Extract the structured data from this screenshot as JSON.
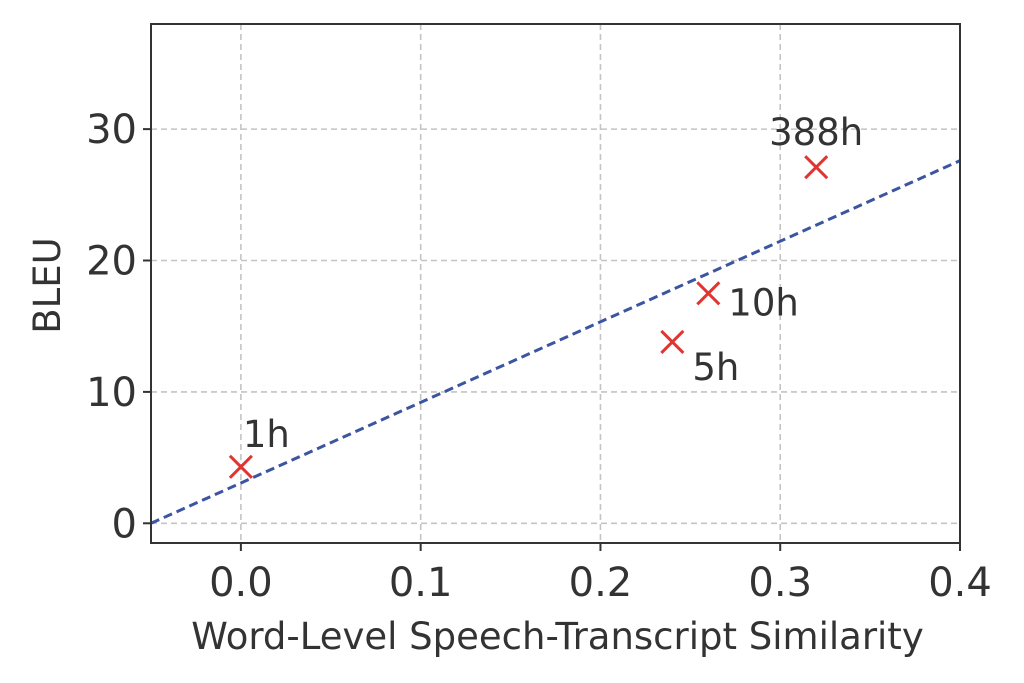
{
  "chart_data": {
    "type": "scatter",
    "title": "",
    "xlabel": "Word-Level Speech-Transcript Similarity",
    "ylabel": "BLEU",
    "xlim": [
      -0.05,
      0.4
    ],
    "ylim": [
      -1.5,
      38
    ],
    "x_ticks": [
      0.0,
      0.1,
      0.2,
      0.3,
      0.4
    ],
    "x_tick_labels": [
      "0.0",
      "0.1",
      "0.2",
      "0.3",
      "0.4"
    ],
    "y_ticks": [
      0,
      10,
      20,
      30
    ],
    "y_tick_labels": [
      "0",
      "10",
      "20",
      "30"
    ],
    "grid": true,
    "marker": "x",
    "colors": {
      "points": "#e03530",
      "fit": "#3b55a0",
      "grid": "#c4c4c4",
      "axis": "#333333"
    },
    "points": [
      {
        "label": "1h",
        "x": 0.0,
        "y": 4.3
      },
      {
        "label": "5h",
        "x": 0.24,
        "y": 13.8
      },
      {
        "label": "10h",
        "x": 0.26,
        "y": 17.5
      },
      {
        "label": "388h",
        "x": 0.32,
        "y": 27.1
      }
    ],
    "fit_line": {
      "style": "dashed",
      "x": [
        -0.05,
        0.4
      ],
      "y": [
        0.0,
        27.6
      ]
    }
  }
}
